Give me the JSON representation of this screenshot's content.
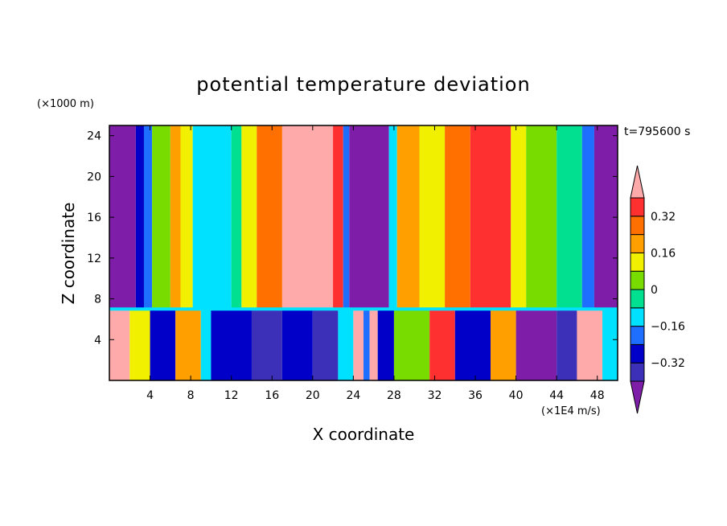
{
  "chart_data": {
    "type": "heatmap",
    "title": "potential temperature deviation",
    "xlabel": "X coordinate",
    "ylabel": "Z coordinate",
    "x_unit": "(×1E4 m/s)",
    "y_unit": "(×1000 m)",
    "time_label": "t=795600 s",
    "xlim": [
      0,
      50
    ],
    "ylim": [
      0,
      25
    ],
    "x_ticks": [
      4,
      8,
      12,
      16,
      20,
      24,
      28,
      32,
      36,
      40,
      44,
      48
    ],
    "y_ticks": [
      4,
      8,
      12,
      16,
      20,
      24
    ],
    "colorbar": {
      "labels": [
        "0.32",
        "0.16",
        "0",
        "-0.16",
        "-0.32"
      ],
      "label_values": [
        0.32,
        0.16,
        0,
        -0.16,
        -0.32
      ],
      "levels": [
        -0.4,
        -0.32,
        -0.24,
        -0.16,
        -0.08,
        0,
        0.08,
        0.16,
        0.24,
        0.32,
        0.4
      ],
      "colors": [
        "#7e1ea8",
        "#3c2fb8",
        "#0000c8",
        "#1e6eff",
        "#00e1ff",
        "#00e090",
        "#78dc00",
        "#f0f000",
        "#ffa000",
        "#ff7000",
        "#ff3030",
        "#ffaaaa"
      ]
    },
    "upper_columns": [
      {
        "x0": 0.0,
        "x1": 2.6,
        "level": 0
      },
      {
        "x0": 2.6,
        "x1": 3.4,
        "level": 2
      },
      {
        "x0": 3.4,
        "x1": 4.2,
        "level": 3
      },
      {
        "x0": 4.2,
        "x1": 6.0,
        "level": 6
      },
      {
        "x0": 6.0,
        "x1": 7.0,
        "level": 8
      },
      {
        "x0": 7.0,
        "x1": 8.2,
        "level": 7
      },
      {
        "x0": 8.2,
        "x1": 12.0,
        "level": 4
      },
      {
        "x0": 12.0,
        "x1": 13.0,
        "level": 5
      },
      {
        "x0": 13.0,
        "x1": 14.5,
        "level": 7
      },
      {
        "x0": 14.5,
        "x1": 17.0,
        "level": 9
      },
      {
        "x0": 17.0,
        "x1": 22.0,
        "level": 11
      },
      {
        "x0": 22.0,
        "x1": 23.0,
        "level": 10
      },
      {
        "x0": 23.0,
        "x1": 23.6,
        "level": 3
      },
      {
        "x0": 23.6,
        "x1": 27.5,
        "level": 0
      },
      {
        "x0": 27.5,
        "x1": 28.3,
        "level": 4
      },
      {
        "x0": 28.3,
        "x1": 30.5,
        "level": 8
      },
      {
        "x0": 30.5,
        "x1": 33.0,
        "level": 7
      },
      {
        "x0": 33.0,
        "x1": 35.5,
        "level": 9
      },
      {
        "x0": 35.5,
        "x1": 39.5,
        "level": 10
      },
      {
        "x0": 39.5,
        "x1": 41.0,
        "level": 7
      },
      {
        "x0": 41.0,
        "x1": 44.0,
        "level": 6
      },
      {
        "x0": 44.0,
        "x1": 46.5,
        "level": 5
      },
      {
        "x0": 46.5,
        "x1": 47.7,
        "level": 3
      },
      {
        "x0": 47.7,
        "x1": 50.0,
        "level": 0
      }
    ],
    "lower_columns": [
      {
        "x0": 0.0,
        "x1": 2.0,
        "level": 11
      },
      {
        "x0": 2.0,
        "x1": 4.0,
        "level": 7
      },
      {
        "x0": 4.0,
        "x1": 6.5,
        "level": 2
      },
      {
        "x0": 6.5,
        "x1": 9.0,
        "level": 8
      },
      {
        "x0": 9.0,
        "x1": 10.0,
        "level": 4
      },
      {
        "x0": 10.0,
        "x1": 14.0,
        "level": 2
      },
      {
        "x0": 14.0,
        "x1": 17.0,
        "level": 1
      },
      {
        "x0": 17.0,
        "x1": 20.0,
        "level": 2
      },
      {
        "x0": 20.0,
        "x1": 22.5,
        "level": 1
      },
      {
        "x0": 22.5,
        "x1": 24.0,
        "level": 4
      },
      {
        "x0": 24.0,
        "x1": 25.0,
        "level": 11
      },
      {
        "x0": 25.0,
        "x1": 25.6,
        "level": 3
      },
      {
        "x0": 25.6,
        "x1": 26.4,
        "level": 11
      },
      {
        "x0": 26.4,
        "x1": 28.0,
        "level": 2
      },
      {
        "x0": 28.0,
        "x1": 31.5,
        "level": 6
      },
      {
        "x0": 31.5,
        "x1": 34.0,
        "level": 10
      },
      {
        "x0": 34.0,
        "x1": 37.5,
        "level": 2
      },
      {
        "x0": 37.5,
        "x1": 40.0,
        "level": 8
      },
      {
        "x0": 40.0,
        "x1": 44.0,
        "level": 0
      },
      {
        "x0": 44.0,
        "x1": 46.0,
        "level": 1
      },
      {
        "x0": 46.0,
        "x1": 48.5,
        "level": 11
      },
      {
        "x0": 48.5,
        "x1": 50.0,
        "level": 4
      }
    ],
    "interface_height": 7
  }
}
